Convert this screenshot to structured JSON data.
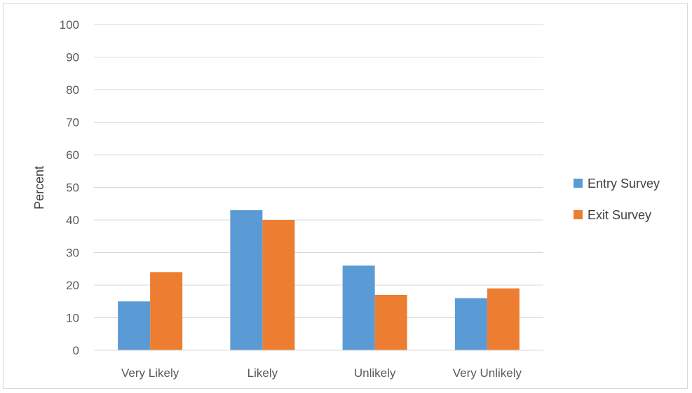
{
  "chart_data": {
    "type": "bar",
    "title": "",
    "xlabel": "",
    "ylabel": "Percent",
    "ylim": [
      0,
      100
    ],
    "yticks": [
      0,
      10,
      20,
      30,
      40,
      50,
      60,
      70,
      80,
      90,
      100
    ],
    "grid": true,
    "legend_position": "right",
    "categories": [
      "Very Likely",
      "Likely",
      "Unlikely",
      "Very Unlikely"
    ],
    "series": [
      {
        "name": "Entry Survey",
        "color": "#5b9bd5",
        "values": [
          15,
          43,
          26,
          16
        ]
      },
      {
        "name": "Exit Survey",
        "color": "#ed7d31",
        "values": [
          24,
          40,
          17,
          19
        ]
      }
    ]
  }
}
